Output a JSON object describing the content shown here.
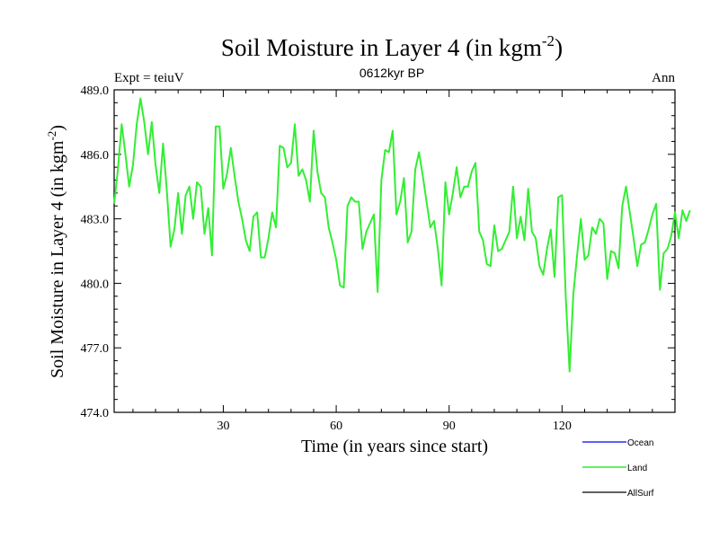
{
  "chart_data": {
    "type": "line",
    "title": "Soil Moisture in Layer 4 (in kgm",
    "title_sup": "-2",
    "title_close": ")",
    "subtitle_left": "Expt = teiuV",
    "subtitle_center": "0612kyr BP",
    "subtitle_right": "Ann",
    "xlabel": "Time (in years since start)",
    "ylabel": "Soil Moisture in Layer 4 (in kgm",
    "ylabel_sup": "-2",
    "ylabel_close": ")",
    "xlim": [
      1,
      150
    ],
    "ylim": [
      474.0,
      489.0
    ],
    "x_ticks": [
      30,
      60,
      90,
      120
    ],
    "x_tick_labels": [
      "30",
      "60",
      "90",
      "120"
    ],
    "y_ticks": [
      474.0,
      477.0,
      480.0,
      483.0,
      486.0,
      489.0
    ],
    "y_tick_labels": [
      "474.0",
      "477.0",
      "480.0",
      "483.0",
      "486.0",
      "489.0"
    ],
    "legend": [
      {
        "name": "Ocean",
        "color": "#0000ff"
      },
      {
        "name": "Land",
        "color": "#00ee00"
      },
      {
        "name": "AllSurf",
        "color": "#000000"
      }
    ],
    "series": [
      {
        "name": "Land",
        "color": "#33ee33",
        "x_start": 1,
        "values": [
          483.7,
          485.3,
          487.4,
          486.0,
          484.5,
          485.5,
          487.4,
          488.6,
          487.5,
          486.0,
          487.5,
          485.5,
          484.2,
          486.5,
          484.3,
          481.7,
          482.5,
          484.2,
          482.3,
          484.1,
          484.5,
          483.0,
          484.7,
          484.5,
          482.3,
          483.5,
          481.3,
          487.3,
          487.3,
          484.4,
          485.1,
          486.3,
          485.0,
          483.8,
          483.0,
          482.0,
          481.5,
          483.1,
          483.3,
          481.2,
          481.2,
          482.1,
          483.3,
          482.6,
          486.4,
          486.3,
          485.4,
          485.6,
          487.4,
          485.0,
          485.3,
          484.8,
          483.8,
          487.1,
          485.2,
          484.2,
          484.0,
          482.6,
          481.9,
          481.1,
          479.9,
          479.8,
          483.6,
          484.0,
          483.8,
          483.8,
          481.6,
          482.4,
          482.8,
          483.2,
          479.6,
          484.8,
          486.2,
          486.1,
          487.1,
          483.2,
          483.8,
          484.9,
          481.9,
          482.4,
          485.3,
          486.1,
          485.0,
          483.8,
          482.6,
          482.9,
          481.6,
          479.9,
          484.7,
          483.2,
          484.2,
          485.4,
          484.0,
          484.5,
          484.5,
          485.2,
          485.6,
          482.4,
          482.0,
          480.9,
          480.8,
          482.7,
          481.5,
          481.6,
          482.0,
          482.4,
          484.5,
          482.1,
          483.1,
          482.0,
          484.4,
          482.4,
          482.1,
          480.8,
          480.4,
          481.6,
          482.5,
          480.3,
          484.0,
          484.1,
          479.3,
          475.9,
          479.5,
          481.3,
          483.0,
          481.1,
          481.3,
          482.6,
          482.3,
          483.0,
          482.8,
          480.2,
          481.5,
          481.4,
          480.7,
          483.6,
          484.5,
          483.3,
          482.1,
          480.8,
          481.8,
          481.9,
          482.5,
          483.2,
          483.7,
          479.7,
          481.4,
          481.6,
          482.2,
          483.3,
          482.1,
          483.4,
          482.9,
          483.4
        ]
      }
    ]
  }
}
